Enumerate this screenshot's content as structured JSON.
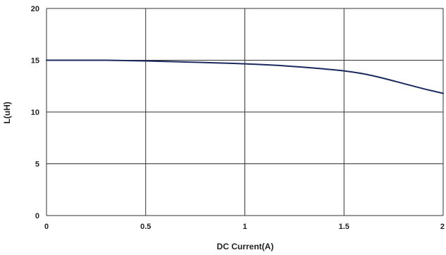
{
  "chart_data": {
    "type": "line",
    "title": "",
    "xlabel": "DC Current(A)",
    "ylabel": "L(uH)",
    "xlim": [
      0,
      2
    ],
    "ylim": [
      0,
      20
    ],
    "grid": true,
    "x_ticks": [
      "0",
      "0.5",
      "1",
      "1.5",
      "2"
    ],
    "y_ticks": [
      "0",
      "5",
      "10",
      "15",
      "20"
    ],
    "series": [
      {
        "color": "#1b2a5e",
        "x": [
          0,
          0.1,
          0.2,
          0.3,
          0.4,
          0.5,
          0.6,
          0.7,
          0.8,
          0.9,
          1.0,
          1.1,
          1.2,
          1.3,
          1.4,
          1.5,
          1.6,
          1.7,
          1.8,
          1.9,
          2.0
        ],
        "y": [
          15.0,
          15.0,
          15.0,
          15.0,
          14.97,
          14.93,
          14.88,
          14.83,
          14.78,
          14.72,
          14.65,
          14.57,
          14.46,
          14.32,
          14.16,
          13.97,
          13.68,
          13.25,
          12.75,
          12.25,
          11.8
        ]
      }
    ]
  },
  "colors": {
    "grid": "#333333",
    "line": "#1b2a5e"
  }
}
